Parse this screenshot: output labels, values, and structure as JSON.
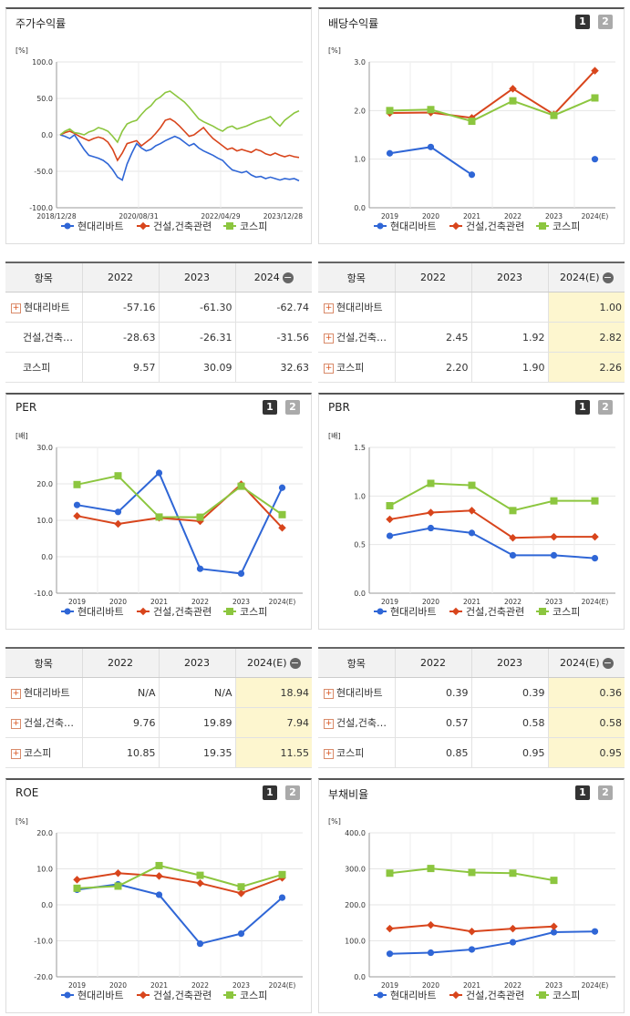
{
  "colors": {
    "s1": "#2f66d6",
    "s2": "#d8451c",
    "s3": "#8cc63f"
  },
  "legend": [
    "현대리바트",
    "건설,건축관련",
    "코스피"
  ],
  "panels": {
    "stock": {
      "title": "주가수익률",
      "unit": "[%]"
    },
    "dividend": {
      "title": "배당수익률",
      "unit": "[%]"
    },
    "per": {
      "title": "PER",
      "unit": "[배]"
    },
    "pbr": {
      "title": "PBR",
      "unit": "[배]"
    },
    "roe": {
      "title": "ROE",
      "unit": "[%]"
    },
    "debt": {
      "title": "부채비율",
      "unit": "[%]"
    }
  },
  "buttons": {
    "b1": "1",
    "b2": "2"
  },
  "chart_data": [
    {
      "id": "stock",
      "type": "line",
      "ylim": [
        -100,
        100
      ],
      "yticks": [
        -100,
        -50,
        0,
        50,
        100
      ],
      "ytick_labels": [
        "-100.0",
        "-50.0",
        "0.0",
        "50.0",
        "100.0"
      ],
      "x_tick_labels": [
        "2018/12/28",
        "2020/08/31",
        "2022/04/29",
        "2023/12/28"
      ],
      "series": [
        {
          "name": "현대리바트",
          "values": [
            0,
            -2,
            -5,
            0,
            -10,
            -20,
            -28,
            -30,
            -32,
            -35,
            -40,
            -48,
            -58,
            -62,
            -40,
            -25,
            -12,
            -18,
            -22,
            -20,
            -15,
            -12,
            -8,
            -5,
            -2,
            -5,
            -10,
            -15,
            -12,
            -18,
            -22,
            -25,
            -28,
            -32,
            -35,
            -42,
            -48,
            -50,
            -52,
            -50,
            -55,
            -58,
            -57,
            -60,
            -58,
            -60,
            -62,
            -60,
            -61,
            -60,
            -63
          ]
        },
        {
          "name": "건설,건축관련",
          "values": [
            0,
            3,
            5,
            2,
            -2,
            -5,
            -8,
            -5,
            -3,
            -5,
            -10,
            -20,
            -35,
            -25,
            -12,
            -10,
            -8,
            -15,
            -10,
            -5,
            2,
            10,
            20,
            22,
            18,
            12,
            5,
            -2,
            0,
            5,
            10,
            2,
            -5,
            -10,
            -15,
            -20,
            -18,
            -22,
            -20,
            -22,
            -24,
            -20,
            -22,
            -26,
            -28,
            -25,
            -28,
            -30,
            -28,
            -30,
            -31
          ]
        },
        {
          "name": "코스피",
          "values": [
            0,
            5,
            8,
            3,
            2,
            0,
            4,
            6,
            10,
            8,
            5,
            -2,
            -10,
            5,
            15,
            18,
            20,
            28,
            35,
            40,
            48,
            52,
            58,
            60,
            55,
            50,
            45,
            38,
            30,
            22,
            18,
            15,
            12,
            8,
            5,
            10,
            12,
            8,
            10,
            12,
            15,
            18,
            20,
            22,
            25,
            18,
            12,
            20,
            25,
            30,
            33
          ]
        }
      ]
    },
    {
      "id": "dividend",
      "type": "line",
      "categories": [
        "2019",
        "2020",
        "2021",
        "2022",
        "2023",
        "2024(E)"
      ],
      "ylim": [
        0,
        3
      ],
      "yticks": [
        0,
        1,
        2,
        3
      ],
      "ytick_labels": [
        "0.0",
        "1.0",
        "2.0",
        "3.0"
      ],
      "series": [
        {
          "name": "현대리바트",
          "values": [
            1.12,
            1.25,
            0.68,
            null,
            null,
            1.0
          ]
        },
        {
          "name": "건설,건축관련",
          "values": [
            1.95,
            1.96,
            1.85,
            2.45,
            1.92,
            2.82
          ]
        },
        {
          "name": "코스피",
          "values": [
            2.0,
            2.02,
            1.78,
            2.2,
            1.9,
            2.26
          ]
        }
      ]
    },
    {
      "id": "per",
      "type": "line",
      "categories": [
        "2019",
        "2020",
        "2021",
        "2022",
        "2023",
        "2024(E)"
      ],
      "ylim": [
        -10,
        30
      ],
      "yticks": [
        -10,
        0,
        10,
        20,
        30
      ],
      "ytick_labels": [
        "-10.0",
        "0.0",
        "10.0",
        "20.0",
        "30.0"
      ],
      "series": [
        {
          "name": "현대리바트",
          "values": [
            14.2,
            12.3,
            23.0,
            -3.3,
            -4.6,
            18.94
          ]
        },
        {
          "name": "건설,건축관련",
          "values": [
            11.2,
            9.0,
            10.7,
            9.76,
            19.89,
            7.94
          ]
        },
        {
          "name": "코스피",
          "values": [
            19.8,
            22.2,
            10.9,
            10.85,
            19.35,
            11.55
          ]
        }
      ]
    },
    {
      "id": "pbr",
      "type": "line",
      "categories": [
        "2019",
        "2020",
        "2021",
        "2022",
        "2023",
        "2024(E)"
      ],
      "ylim": [
        0,
        1.5
      ],
      "yticks": [
        0,
        0.5,
        1.0,
        1.5
      ],
      "ytick_labels": [
        "0.0",
        "0.5",
        "1.0",
        "1.5"
      ],
      "series": [
        {
          "name": "현대리바트",
          "values": [
            0.59,
            0.67,
            0.62,
            0.39,
            0.39,
            0.36
          ]
        },
        {
          "name": "건설,건축관련",
          "values": [
            0.76,
            0.83,
            0.85,
            0.57,
            0.58,
            0.58
          ]
        },
        {
          "name": "코스피",
          "values": [
            0.9,
            1.13,
            1.11,
            0.85,
            0.95,
            0.95
          ]
        }
      ]
    },
    {
      "id": "roe",
      "type": "line",
      "categories": [
        "2019",
        "2020",
        "2021",
        "2022",
        "2023",
        "2024(E)"
      ],
      "ylim": [
        -20,
        20
      ],
      "yticks": [
        -20,
        -10,
        0,
        10,
        20
      ],
      "ytick_labels": [
        "-20.0",
        "-10.0",
        "0.0",
        "10.0",
        "20.0"
      ],
      "series": [
        {
          "name": "현대리바트",
          "values": [
            4.2,
            5.7,
            2.8,
            -10.8,
            -8.0,
            2.0
          ]
        },
        {
          "name": "건설,건축관련",
          "values": [
            7.0,
            8.8,
            8.0,
            6.0,
            3.2,
            7.5
          ]
        },
        {
          "name": "코스피",
          "values": [
            4.6,
            5.2,
            10.9,
            8.2,
            5.0,
            8.4
          ]
        }
      ]
    },
    {
      "id": "debt",
      "type": "line",
      "categories": [
        "2019",
        "2020",
        "2021",
        "2022",
        "2023",
        "2024(E)"
      ],
      "ylim": [
        0,
        400
      ],
      "yticks": [
        0,
        100,
        200,
        300,
        400
      ],
      "ytick_labels": [
        "0.0",
        "100.0",
        "200.0",
        "300.0",
        "400.0"
      ],
      "series": [
        {
          "name": "현대리바트",
          "values": [
            64,
            67,
            76,
            96,
            124,
            126
          ]
        },
        {
          "name": "건설,건축관련",
          "values": [
            134,
            144,
            126,
            134,
            140,
            null
          ]
        },
        {
          "name": "코스피",
          "values": [
            288,
            301,
            290,
            288,
            268,
            null
          ]
        }
      ]
    }
  ],
  "tables": {
    "stock": {
      "header": [
        "항목",
        "2022",
        "2023",
        "2024"
      ],
      "rows": [
        {
          "label": "현대리바트",
          "v": [
            "-57.16",
            "-61.30",
            "-62.74"
          ]
        },
        {
          "label": "건설,건축…",
          "v": [
            "-28.63",
            "-26.31",
            "-31.56"
          ]
        },
        {
          "label": "코스피",
          "v": [
            "9.57",
            "30.09",
            "32.63"
          ]
        }
      ]
    },
    "dividend": {
      "header": [
        "항목",
        "2022",
        "2023",
        "2024(E)"
      ],
      "rows": [
        {
          "label": "현대리바트",
          "v": [
            "",
            "",
            "1.00"
          ]
        },
        {
          "label": "건설,건축…",
          "v": [
            "2.45",
            "1.92",
            "2.82"
          ]
        },
        {
          "label": "코스피",
          "v": [
            "2.20",
            "1.90",
            "2.26"
          ]
        }
      ]
    },
    "per": {
      "header": [
        "항목",
        "2022",
        "2023",
        "2024(E)"
      ],
      "rows": [
        {
          "label": "현대리바트",
          "v": [
            "N/A",
            "N/A",
            "18.94"
          ]
        },
        {
          "label": "건설,건축…",
          "v": [
            "9.76",
            "19.89",
            "7.94"
          ]
        },
        {
          "label": "코스피",
          "v": [
            "10.85",
            "19.35",
            "11.55"
          ]
        }
      ]
    },
    "pbr": {
      "header": [
        "항목",
        "2022",
        "2023",
        "2024(E)"
      ],
      "rows": [
        {
          "label": "현대리바트",
          "v": [
            "0.39",
            "0.39",
            "0.36"
          ]
        },
        {
          "label": "건설,건축…",
          "v": [
            "0.57",
            "0.58",
            "0.58"
          ]
        },
        {
          "label": "코스피",
          "v": [
            "0.85",
            "0.95",
            "0.95"
          ]
        }
      ]
    }
  }
}
